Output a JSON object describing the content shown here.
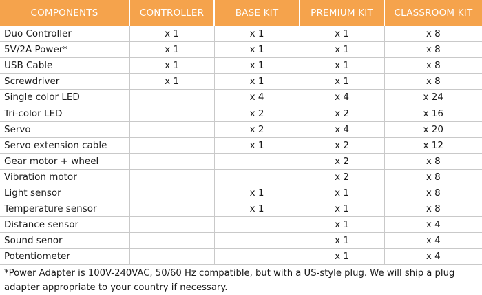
{
  "table": {
    "headers": [
      "COMPONENTS",
      "CONTROLLER",
      "BASE KIT",
      "PREMIUM KIT",
      "CLASSROOM KIT"
    ],
    "rows": [
      [
        "Duo Controller",
        "x 1",
        "x 1",
        "x 1",
        "x 8"
      ],
      [
        "5V/2A Power*",
        "x 1",
        "x 1",
        "x 1",
        "x 8"
      ],
      [
        "USB Cable",
        "x 1",
        "x 1",
        "x 1",
        "x 8"
      ],
      [
        "Screwdriver",
        "x 1",
        "x 1",
        "x 1",
        "x 8"
      ],
      [
        "Single color LED",
        "",
        "x 4",
        "x 4",
        "x 24"
      ],
      [
        "Tri-color LED",
        "",
        "x 2",
        "x 2",
        "x 16"
      ],
      [
        "Servo",
        "",
        "x 2",
        "x 4",
        "x 20"
      ],
      [
        "Servo extension cable",
        "",
        "x 1",
        "x 2",
        "x 12"
      ],
      [
        "Gear motor + wheel",
        "",
        "",
        "x 2",
        "x 8"
      ],
      [
        "Vibration motor",
        "",
        "",
        "x 2",
        "x 8"
      ],
      [
        "Light sensor",
        "",
        "x 1",
        "x 1",
        "x 8"
      ],
      [
        "Temperature sensor",
        "",
        "x 1",
        "x 1",
        "x 8"
      ],
      [
        "Distance sensor",
        "",
        "",
        "x 1",
        "x 4"
      ],
      [
        "Sound senor",
        "",
        "",
        "x 1",
        "x 4"
      ],
      [
        "Potentiometer",
        "",
        "",
        "x 1",
        "x 4"
      ]
    ]
  },
  "footnote": "*Power Adapter is 100V-240VAC, 50/60 Hz compatible, but with a US-style plug. We will ship a plug adapter appropriate to your country if necessary.",
  "colors": {
    "header_bg": "#f5a34c",
    "header_text": "#ffffff",
    "grid": "#c9c9c9"
  }
}
